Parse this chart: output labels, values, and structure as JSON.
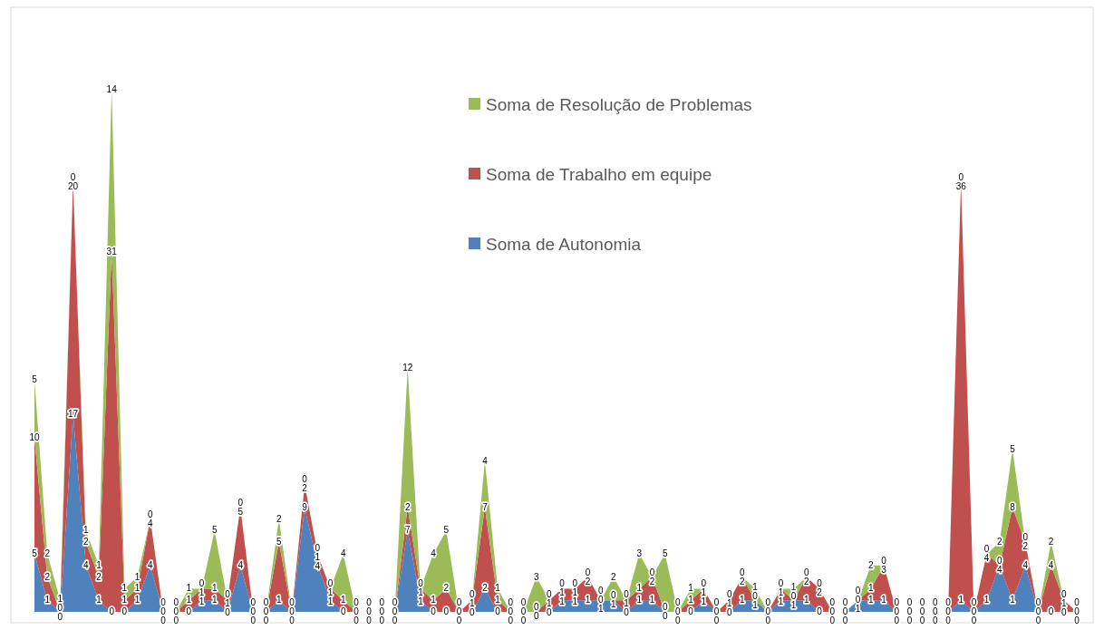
{
  "chart_data": {
    "type": "area",
    "stacked": true,
    "data_labels": true,
    "legend": "top",
    "categories": [
      null,
      null,
      null,
      null,
      null,
      null,
      null,
      null,
      null,
      null,
      null,
      null,
      null,
      null,
      null,
      null,
      null,
      null,
      null,
      null,
      null,
      null,
      null,
      null,
      null,
      null,
      null,
      null,
      null,
      null,
      null,
      null,
      null,
      null,
      null,
      null,
      null,
      null,
      null,
      null,
      null,
      null,
      null,
      null,
      null,
      null,
      null,
      null,
      null,
      null,
      null,
      null,
      null,
      null,
      null,
      null,
      null,
      null,
      null,
      null,
      null,
      null,
      null,
      null,
      null,
      null,
      null,
      null,
      null,
      null,
      null,
      null,
      null,
      null,
      null,
      null,
      null,
      null,
      null,
      null,
      null,
      null
    ],
    "series": [
      {
        "name": "Soma de Autonomia",
        "color": "#4f81bd",
        "values": [
          5,
          1,
          0,
          17,
          4,
          1,
          0,
          0,
          1,
          4,
          0,
          0,
          0,
          1,
          1,
          0,
          4,
          0,
          0,
          1,
          0,
          9,
          4,
          1,
          0,
          0,
          0,
          0,
          0,
          7,
          1,
          0,
          0,
          0,
          0,
          2,
          0,
          0,
          0,
          0,
          0,
          1,
          1,
          1,
          1,
          1,
          0,
          1,
          1,
          0,
          0,
          0,
          1,
          0,
          0,
          1,
          1,
          0,
          1,
          1,
          1,
          0,
          0,
          0,
          1,
          1,
          1,
          0,
          0,
          0,
          0,
          0,
          1,
          0,
          1,
          4,
          1,
          4,
          0,
          0,
          0,
          0
        ]
      },
      {
        "name": "Soma de Trabalho em equipe",
        "color": "#c0504d",
        "values": [
          10,
          2,
          0,
          20,
          2,
          2,
          31,
          1,
          1,
          4,
          0,
          0,
          1,
          1,
          1,
          1,
          5,
          0,
          0,
          5,
          0,
          2,
          1,
          1,
          1,
          0,
          0,
          0,
          0,
          2,
          1,
          1,
          2,
          0,
          1,
          7,
          1,
          0,
          0,
          0,
          1,
          1,
          1,
          2,
          0,
          0,
          1,
          1,
          2,
          0,
          0,
          1,
          1,
          0,
          1,
          2,
          0,
          0,
          1,
          0,
          2,
          2,
          0,
          0,
          0,
          1,
          3,
          0,
          0,
          0,
          0,
          0,
          36,
          0,
          4,
          0,
          8,
          2,
          0,
          4,
          1,
          0
        ]
      },
      {
        "name": "Soma de Resolução de Problemas",
        "color": "#9bbb59",
        "values": [
          5,
          2,
          1,
          0,
          1,
          1,
          14,
          1,
          1,
          0,
          0,
          0,
          1,
          0,
          5,
          0,
          0,
          0,
          0,
          2,
          0,
          0,
          0,
          0,
          4,
          0,
          0,
          0,
          0,
          12,
          0,
          4,
          5,
          0,
          0,
          4,
          1,
          0,
          0,
          3,
          0,
          0,
          0,
          0,
          0,
          2,
          0,
          3,
          0,
          5,
          0,
          1,
          0,
          0,
          0,
          0,
          1,
          0,
          0,
          1,
          0,
          0,
          0,
          0,
          0,
          2,
          0,
          0,
          0,
          0,
          0,
          0,
          0,
          0,
          0,
          2,
          5,
          0,
          0,
          2,
          0,
          0
        ]
      }
    ]
  }
}
